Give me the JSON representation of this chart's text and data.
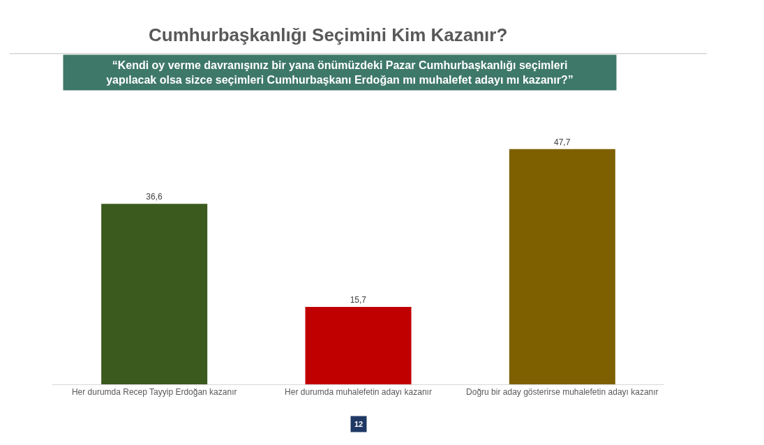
{
  "chart_data": {
    "type": "bar",
    "title": "Cumhurbaşkanlığı Seçimini Kim Kazanır?",
    "subtitle": "“Kendi oy verme davranışınız bir yana önümüzdeki Pazar Cumhurbaşkanlığı seçimleri\nyapılacak olsa sizce seçimleri Cumhurbaşkanı Erdoğan mı muhalefet adayı mı kazanır?”",
    "categories": [
      "Her durumda Recep Tayyip Erdoğan kazanır",
      "Her durumda muhalefetin adayı kazanır",
      "Doğru bir aday gösterirse muhalefetin adayı kazanır"
    ],
    "values": [
      36.6,
      15.7,
      47.7
    ],
    "value_labels": [
      "36,6",
      "15,7",
      "47,7"
    ],
    "colors": [
      "#3b5a1e",
      "#c00000",
      "#7f6000"
    ],
    "legend": false,
    "tick_labels": "x",
    "annotations": [
      "12"
    ]
  }
}
